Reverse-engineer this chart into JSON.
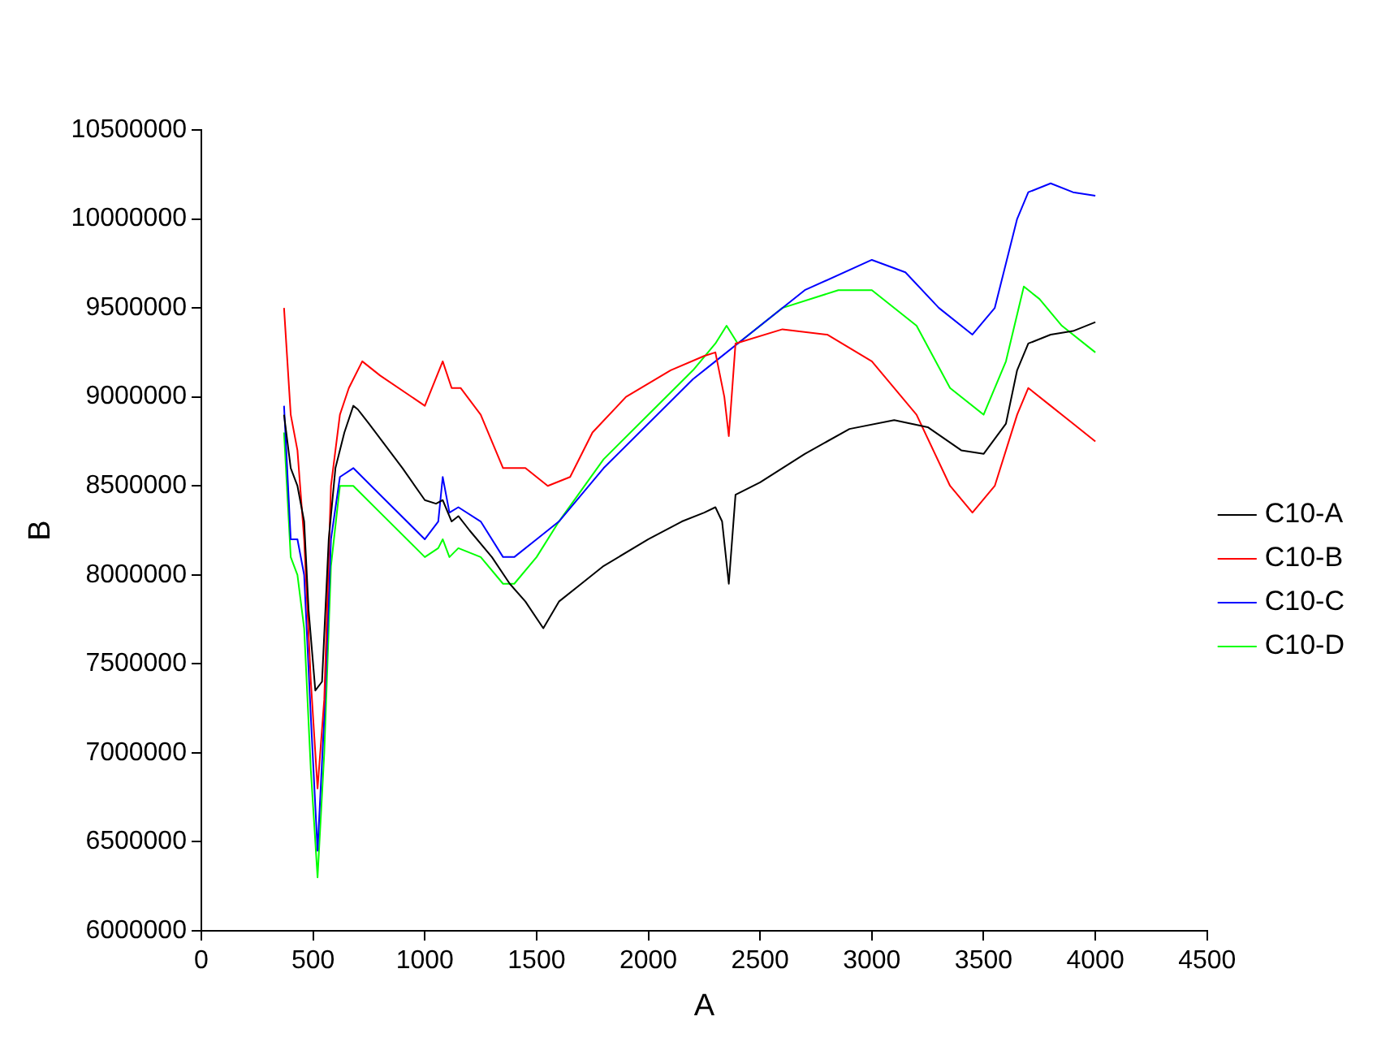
{
  "chart_data": {
    "type": "line",
    "xlabel": "A",
    "ylabel": "B",
    "xlim": [
      0,
      4500
    ],
    "xticks": [
      0,
      500,
      1000,
      1500,
      2000,
      2500,
      3000,
      3500,
      4000,
      4500
    ],
    "ylim": [
      6000000,
      10500000
    ],
    "yticks": [
      6000000,
      6500000,
      7000000,
      7500000,
      8000000,
      8500000,
      9000000,
      9500000,
      10000000,
      10500000
    ],
    "grid": false,
    "legend": "right",
    "marker": "none",
    "line_style": "solid",
    "series": [
      {
        "name": "C10-A",
        "color": "#000000",
        "x": [
          370,
          400,
          430,
          460,
          480,
          510,
          540,
          570,
          600,
          640,
          680,
          700,
          750,
          900,
          1000,
          1050,
          1080,
          1120,
          1150,
          1200,
          1300,
          1380,
          1450,
          1530,
          1600,
          1700,
          1800,
          2000,
          2150,
          2250,
          2300,
          2330,
          2360,
          2390,
          2500,
          2700,
          2900,
          3100,
          3250,
          3400,
          3500,
          3600,
          3650,
          3700,
          3800,
          3900,
          4000
        ],
        "values": [
          8900000,
          8600000,
          8500000,
          8300000,
          7800000,
          7350000,
          7400000,
          8200000,
          8600000,
          8800000,
          8950000,
          8930000,
          8850000,
          8600000,
          8420000,
          8400000,
          8420000,
          8300000,
          8330000,
          8250000,
          8100000,
          7950000,
          7850000,
          7700000,
          7850000,
          7950000,
          8050000,
          8200000,
          8300000,
          8350000,
          8380000,
          8300000,
          7950000,
          8450000,
          8520000,
          8680000,
          8820000,
          8870000,
          8830000,
          8700000,
          8680000,
          8850000,
          9150000,
          9300000,
          9350000,
          9370000,
          9420000
        ]
      },
      {
        "name": "C10-B",
        "color": "#ff0000",
        "x": [
          370,
          400,
          430,
          460,
          490,
          520,
          550,
          580,
          620,
          660,
          720,
          800,
          1000,
          1080,
          1120,
          1160,
          1250,
          1350,
          1450,
          1550,
          1650,
          1750,
          1900,
          2100,
          2250,
          2300,
          2340,
          2360,
          2390,
          2600,
          2800,
          3000,
          3200,
          3350,
          3450,
          3550,
          3650,
          3700,
          3800,
          3900,
          4000
        ],
        "values": [
          9500000,
          8900000,
          8700000,
          8200000,
          7400000,
          6800000,
          7300000,
          8500000,
          8900000,
          9050000,
          9200000,
          9120000,
          8950000,
          9200000,
          9050000,
          9050000,
          8900000,
          8600000,
          8600000,
          8500000,
          8550000,
          8800000,
          9000000,
          9150000,
          9230000,
          9250000,
          9000000,
          8780000,
          9300000,
          9380000,
          9350000,
          9200000,
          8900000,
          8500000,
          8350000,
          8500000,
          8900000,
          9050000,
          8950000,
          8850000,
          8750000
        ]
      },
      {
        "name": "C10-C",
        "color": "#0000ff",
        "x": [
          370,
          400,
          430,
          460,
          490,
          520,
          550,
          580,
          620,
          680,
          800,
          1000,
          1060,
          1080,
          1110,
          1150,
          1250,
          1350,
          1400,
          1500,
          1600,
          1800,
          2000,
          2200,
          2300,
          2450,
          2700,
          3000,
          3150,
          3300,
          3450,
          3550,
          3650,
          3700,
          3800,
          3900,
          4000
        ],
        "values": [
          8950000,
          8200000,
          8200000,
          8000000,
          7200000,
          6450000,
          7200000,
          8200000,
          8550000,
          8600000,
          8450000,
          8200000,
          8300000,
          8550000,
          8350000,
          8380000,
          8300000,
          8100000,
          8100000,
          8200000,
          8300000,
          8600000,
          8850000,
          9100000,
          9200000,
          9350000,
          9600000,
          9770000,
          9700000,
          9500000,
          9350000,
          9500000,
          10000000,
          10150000,
          10200000,
          10150000,
          10130000
        ]
      },
      {
        "name": "C10-D",
        "color": "#00ff00",
        "x": [
          370,
          400,
          430,
          460,
          490,
          520,
          550,
          580,
          620,
          680,
          800,
          1000,
          1060,
          1080,
          1110,
          1150,
          1250,
          1350,
          1400,
          1500,
          1600,
          1800,
          2000,
          2200,
          2300,
          2350,
          2400,
          2600,
          2850,
          3000,
          3200,
          3350,
          3500,
          3600,
          3680,
          3750,
          3850,
          4000
        ],
        "values": [
          8800000,
          8100000,
          8000000,
          7700000,
          6900000,
          6300000,
          7000000,
          8050000,
          8500000,
          8500000,
          8350000,
          8100000,
          8150000,
          8200000,
          8100000,
          8150000,
          8100000,
          7950000,
          7950000,
          8100000,
          8300000,
          8650000,
          8900000,
          9150000,
          9300000,
          9400000,
          9300000,
          9500000,
          9600000,
          9600000,
          9400000,
          9050000,
          8900000,
          9200000,
          9620000,
          9550000,
          9400000,
          9250000
        ]
      }
    ]
  }
}
